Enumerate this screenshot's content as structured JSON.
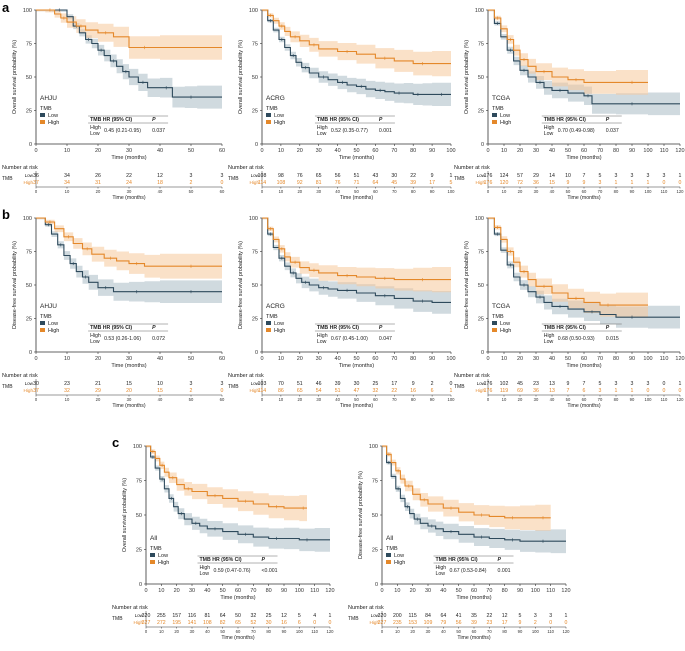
{
  "figure": {
    "panel_labels": [
      "a",
      "b",
      "c"
    ],
    "x_axis_title": "Time (months)",
    "risk_table_title": "Number at risk",
    "risk_row_group": "TMB",
    "risk_row_low": "Low",
    "risk_row_high": "High",
    "legend_title": "TMB",
    "legend_low": "Low",
    "legend_high": "High",
    "hr_header": "TMB HR (95% CI)",
    "p_header": "P",
    "hr_row_high": "High",
    "hr_row_low": "Low",
    "colors": {
      "low": "#2e4a5c",
      "high": "#e4882a",
      "low_band": "#a9bcc4",
      "high_band": "#f6c99b"
    }
  },
  "chart_data": [
    {
      "type": "line",
      "panel": "a",
      "cohort": "AHJU",
      "ylabel": "Overall survival probability (%)",
      "xlim": [
        0,
        60
      ],
      "xticks": [
        0,
        10,
        20,
        30,
        40,
        50,
        60
      ],
      "ylim": [
        0,
        100
      ],
      "yticks": [
        0,
        25,
        50,
        75,
        100
      ],
      "hr": "0.45 (0.21-0.95)",
      "p": "0.037",
      "series": [
        {
          "name": "Low",
          "x": [
            0,
            5,
            10,
            12,
            14,
            16,
            18,
            20,
            22,
            24,
            26,
            28,
            30,
            33,
            36,
            40,
            44,
            48,
            52,
            60
          ],
          "y": [
            100,
            100,
            95,
            88,
            83,
            78,
            75,
            70,
            66,
            62,
            58,
            54,
            50,
            46,
            42,
            42,
            35,
            35,
            35,
            35
          ]
        },
        {
          "name": "High",
          "x": [
            0,
            3,
            6,
            8,
            10,
            13,
            16,
            20,
            25,
            30,
            40,
            60
          ],
          "y": [
            100,
            100,
            97,
            94,
            91,
            88,
            85,
            83,
            80,
            72,
            72,
            72
          ]
        }
      ],
      "risk_ticks": [
        0,
        10,
        20,
        30,
        40,
        50,
        60
      ],
      "risk_low": [
        "36",
        "34",
        "26",
        "22",
        "12",
        "3",
        "3"
      ],
      "risk_high": [
        "37",
        "34",
        "31",
        "24",
        "18",
        "2",
        "0"
      ]
    },
    {
      "type": "line",
      "panel": "a",
      "cohort": "ACRG",
      "ylabel": "Overall survival probability (%)",
      "xlim": [
        0,
        100
      ],
      "xticks": [
        0,
        10,
        20,
        30,
        40,
        50,
        60,
        70,
        80,
        90,
        100
      ],
      "ylim": [
        0,
        100
      ],
      "yticks": [
        0,
        25,
        50,
        75,
        100
      ],
      "hr": "0.52 (0.35-0.77)",
      "p": "0.001",
      "series": [
        {
          "name": "Low",
          "x": [
            0,
            3,
            6,
            9,
            12,
            15,
            18,
            21,
            25,
            30,
            35,
            40,
            45,
            50,
            55,
            60,
            65,
            70,
            75,
            80,
            85,
            90,
            100
          ],
          "y": [
            100,
            92,
            85,
            78,
            72,
            66,
            61,
            57,
            53,
            50,
            48,
            46,
            44,
            43,
            41,
            40,
            39,
            38,
            38,
            37,
            37,
            37,
            37
          ]
        },
        {
          "name": "High",
          "x": [
            0,
            3,
            6,
            9,
            12,
            15,
            20,
            25,
            30,
            40,
            50,
            60,
            70,
            80,
            90,
            100
          ],
          "y": [
            100,
            96,
            92,
            88,
            84,
            80,
            77,
            74,
            71,
            69,
            67,
            64,
            62,
            60,
            60,
            60
          ]
        }
      ],
      "risk_ticks": [
        0,
        10,
        20,
        30,
        40,
        50,
        60,
        70,
        80,
        90,
        100
      ],
      "risk_low": [
        "108",
        "98",
        "76",
        "65",
        "56",
        "51",
        "43",
        "30",
        "22",
        "9",
        "1"
      ],
      "risk_high": [
        "114",
        "108",
        "92",
        "81",
        "76",
        "71",
        "64",
        "45",
        "39",
        "17",
        "5"
      ]
    },
    {
      "type": "line",
      "panel": "a",
      "cohort": "TCGA",
      "ylabel": "Overall survival probability (%)",
      "xlim": [
        0,
        120
      ],
      "xticks": [
        0,
        10,
        20,
        30,
        40,
        50,
        60,
        70,
        80,
        90,
        100,
        110,
        120
      ],
      "ylim": [
        0,
        100
      ],
      "yticks": [
        0,
        25,
        50,
        75,
        100
      ],
      "hr": "0.70 (0.49-0.98)",
      "p": "0.037",
      "series": [
        {
          "name": "Low",
          "x": [
            0,
            4,
            8,
            12,
            16,
            20,
            25,
            30,
            35,
            40,
            50,
            60,
            65,
            80,
            100,
            120
          ],
          "y": [
            100,
            90,
            80,
            70,
            62,
            55,
            50,
            46,
            42,
            40,
            38,
            36,
            30,
            30,
            30,
            30
          ]
        },
        {
          "name": "High",
          "x": [
            0,
            4,
            8,
            12,
            16,
            20,
            25,
            30,
            40,
            50,
            60,
            80,
            100
          ],
          "y": [
            100,
            94,
            86,
            78,
            70,
            63,
            58,
            54,
            50,
            48,
            46,
            46,
            46
          ]
        }
      ],
      "risk_ticks": [
        0,
        10,
        20,
        30,
        40,
        50,
        60,
        70,
        80,
        90,
        100,
        110,
        120
      ],
      "risk_low": [
        "176",
        "124",
        "57",
        "29",
        "14",
        "10",
        "7",
        "5",
        "3",
        "3",
        "3",
        "3",
        "1"
      ],
      "risk_high": [
        "176",
        "120",
        "72",
        "36",
        "15",
        "9",
        "9",
        "3",
        "1",
        "1",
        "1",
        "0",
        "0"
      ]
    },
    {
      "type": "line",
      "panel": "b",
      "cohort": "AHJU",
      "ylabel": "Disease-free survival probability (%)",
      "xlim": [
        0,
        60
      ],
      "xticks": [
        0,
        10,
        20,
        30,
        40,
        50,
        60
      ],
      "ylim": [
        0,
        100
      ],
      "yticks": [
        0,
        25,
        50,
        75,
        100
      ],
      "hr": "0.53 (0.26-1.06)",
      "p": "0.072",
      "series": [
        {
          "name": "Low",
          "x": [
            0,
            3,
            5,
            7,
            9,
            11,
            13,
            15,
            17,
            20,
            25,
            30,
            35,
            40,
            60
          ],
          "y": [
            100,
            95,
            88,
            80,
            72,
            66,
            60,
            56,
            52,
            48,
            45,
            45,
            45,
            45,
            45
          ]
        },
        {
          "name": "High",
          "x": [
            0,
            3,
            6,
            9,
            12,
            15,
            18,
            22,
            26,
            30,
            35,
            40,
            60
          ],
          "y": [
            100,
            97,
            92,
            86,
            81,
            77,
            73,
            70,
            68,
            66,
            64,
            64,
            64
          ]
        }
      ],
      "risk_ticks": [
        0,
        10,
        20,
        30,
        40,
        50,
        60
      ],
      "risk_low": [
        "30",
        "23",
        "21",
        "15",
        "10",
        "3",
        "3"
      ],
      "risk_high": [
        "37",
        "32",
        "29",
        "20",
        "15",
        "2",
        "0"
      ]
    },
    {
      "type": "line",
      "panel": "b",
      "cohort": "ACRG",
      "ylabel": "Disease-free survival probability (%)",
      "xlim": [
        0,
        100
      ],
      "xticks": [
        0,
        10,
        20,
        30,
        40,
        50,
        60,
        70,
        80,
        90,
        100
      ],
      "ylim": [
        0,
        100
      ],
      "yticks": [
        0,
        25,
        50,
        75,
        100
      ],
      "hr": "0.67 (0.45-1.00)",
      "p": "0.047",
      "series": [
        {
          "name": "Low",
          "x": [
            0,
            3,
            6,
            9,
            12,
            15,
            18,
            21,
            25,
            30,
            35,
            40,
            50,
            60,
            70,
            80,
            90,
            100
          ],
          "y": [
            100,
            88,
            78,
            70,
            64,
            59,
            55,
            52,
            50,
            48,
            47,
            46,
            44,
            42,
            40,
            38,
            37,
            37
          ]
        },
        {
          "name": "High",
          "x": [
            0,
            3,
            6,
            9,
            12,
            15,
            20,
            25,
            30,
            40,
            50,
            60,
            70,
            80,
            90,
            100
          ],
          "y": [
            100,
            92,
            84,
            77,
            71,
            67,
            63,
            61,
            59,
            57,
            56,
            55,
            54,
            54,
            54,
            54
          ]
        }
      ],
      "risk_ticks": [
        0,
        10,
        20,
        30,
        40,
        50,
        60,
        70,
        80,
        90,
        100
      ],
      "risk_low": [
        "103",
        "70",
        "51",
        "46",
        "39",
        "30",
        "25",
        "17",
        "9",
        "2",
        "0"
      ],
      "risk_high": [
        "114",
        "86",
        "65",
        "54",
        "51",
        "47",
        "32",
        "22",
        "16",
        "6",
        "1"
      ]
    },
    {
      "type": "line",
      "panel": "b",
      "cohort": "TCGA",
      "ylabel": "Disease-free survival probability (%)",
      "xlim": [
        0,
        120
      ],
      "xticks": [
        0,
        10,
        20,
        30,
        40,
        50,
        60,
        70,
        80,
        90,
        100,
        110,
        120
      ],
      "ylim": [
        0,
        100
      ],
      "yticks": [
        0,
        25,
        50,
        75,
        100
      ],
      "hr": "0.68 (0.50-0.93)",
      "p": "0.015",
      "series": [
        {
          "name": "Low",
          "x": [
            0,
            4,
            8,
            12,
            16,
            20,
            25,
            30,
            35,
            40,
            50,
            60,
            70,
            80,
            100,
            120
          ],
          "y": [
            100,
            88,
            76,
            65,
            56,
            50,
            45,
            41,
            37,
            34,
            32,
            30,
            28,
            26,
            26,
            26
          ]
        },
        {
          "name": "High",
          "x": [
            0,
            4,
            8,
            12,
            16,
            20,
            25,
            30,
            40,
            50,
            60,
            70,
            80,
            100
          ],
          "y": [
            100,
            93,
            84,
            75,
            67,
            60,
            54,
            49,
            44,
            40,
            37,
            35,
            35,
            35
          ]
        }
      ],
      "risk_ticks": [
        0,
        10,
        20,
        30,
        40,
        50,
        60,
        70,
        80,
        90,
        100,
        110,
        120
      ],
      "risk_low": [
        "176",
        "102",
        "45",
        "23",
        "13",
        "9",
        "7",
        "5",
        "3",
        "3",
        "3",
        "0",
        "1"
      ],
      "risk_high": [
        "176",
        "119",
        "69",
        "36",
        "13",
        "7",
        "6",
        "3",
        "1",
        "1",
        "0",
        "0",
        "0"
      ]
    },
    {
      "type": "line",
      "panel": "c",
      "cohort": "All",
      "ylabel": "Overall survival probability (%)",
      "xlim": [
        0,
        120
      ],
      "xticks": [
        0,
        10,
        20,
        30,
        40,
        50,
        60,
        70,
        80,
        90,
        100,
        110,
        120
      ],
      "ylim": [
        0,
        100
      ],
      "yticks": [
        0,
        25,
        50,
        75,
        100
      ],
      "hr": "0.59 (0.47-0.76)",
      "p": "<0.001",
      "series": [
        {
          "name": "Low",
          "x": [
            0,
            3,
            6,
            9,
            12,
            15,
            18,
            21,
            25,
            30,
            35,
            40,
            50,
            60,
            70,
            80,
            90,
            100,
            110,
            120
          ],
          "y": [
            100,
            92,
            84,
            76,
            69,
            62,
            56,
            51,
            47,
            44,
            42,
            40,
            38,
            36,
            34,
            33,
            33,
            32,
            32,
            32
          ]
        },
        {
          "name": "High",
          "x": [
            0,
            3,
            6,
            9,
            12,
            15,
            20,
            25,
            30,
            40,
            50,
            60,
            70,
            80,
            90,
            100,
            105
          ],
          "y": [
            100,
            96,
            91,
            86,
            81,
            77,
            72,
            69,
            67,
            64,
            62,
            60,
            58,
            56,
            55,
            55,
            55
          ]
        }
      ],
      "risk_ticks": [
        0,
        10,
        20,
        30,
        40,
        50,
        60,
        70,
        80,
        90,
        100,
        110,
        120
      ],
      "risk_low": [
        "320",
        "255",
        "157",
        "116",
        "81",
        "64",
        "50",
        "32",
        "25",
        "12",
        "5",
        "4",
        "1"
      ],
      "risk_high": [
        "327",
        "272",
        "195",
        "141",
        "108",
        "82",
        "65",
        "52",
        "30",
        "16",
        "6",
        "0",
        "0"
      ]
    },
    {
      "type": "line",
      "panel": "c",
      "cohort": "All",
      "ylabel": "Disease-free survival probability (%)",
      "xlim": [
        0,
        120
      ],
      "xticks": [
        0,
        10,
        20,
        30,
        40,
        50,
        60,
        70,
        80,
        90,
        100,
        110,
        120
      ],
      "ylim": [
        0,
        100
      ],
      "yticks": [
        0,
        25,
        50,
        75,
        100
      ],
      "hr": "0.67 (0.53-0.84)",
      "p": "0.001",
      "series": [
        {
          "name": "Low",
          "x": [
            0,
            3,
            6,
            9,
            12,
            15,
            18,
            21,
            25,
            30,
            35,
            40,
            50,
            60,
            70,
            80,
            90,
            100,
            110,
            120
          ],
          "y": [
            100,
            88,
            78,
            69,
            62,
            56,
            51,
            47,
            44,
            42,
            40,
            38,
            36,
            34,
            33,
            32,
            31,
            31,
            31,
            31
          ]
        },
        {
          "name": "High",
          "x": [
            0,
            3,
            6,
            9,
            12,
            15,
            20,
            25,
            30,
            40,
            50,
            60,
            70,
            80,
            90,
            100,
            110
          ],
          "y": [
            100,
            94,
            88,
            82,
            76,
            71,
            65,
            61,
            58,
            55,
            52,
            50,
            49,
            48,
            48,
            48,
            48
          ]
        }
      ],
      "risk_ticks": [
        0,
        10,
        20,
        30,
        40,
        50,
        60,
        70,
        80,
        90,
        100,
        110,
        120
      ],
      "risk_low": [
        "320",
        "200",
        "115",
        "84",
        "64",
        "41",
        "35",
        "22",
        "12",
        "5",
        "3",
        "3",
        "1"
      ],
      "risk_high": [
        "327",
        "235",
        "153",
        "109",
        "79",
        "56",
        "39",
        "23",
        "17",
        "9",
        "2",
        "0",
        "0"
      ]
    }
  ]
}
